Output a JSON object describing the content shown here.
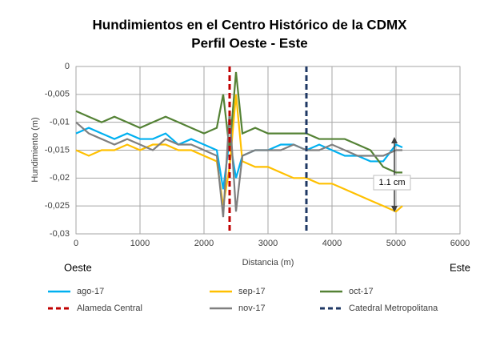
{
  "chart_data": {
    "type": "line",
    "title": "Hundimientos en el Centro Histórico de la CDMX",
    "subtitle": "Perfil Oeste - Este",
    "x_label": "Distancia (m)",
    "y_label": "Hundimiento (m)",
    "x": [
      0,
      200,
      400,
      600,
      800,
      1000,
      1200,
      1400,
      1600,
      1800,
      2000,
      2200,
      2300,
      2400,
      2500,
      2600,
      2800,
      3000,
      3200,
      3400,
      3600,
      3800,
      4000,
      4200,
      4400,
      4600,
      4800,
      5000,
      5100
    ],
    "series": [
      {
        "name": "ago-17",
        "color": "#00b0f0",
        "values": [
          -0.012,
          -0.011,
          -0.012,
          -0.013,
          -0.012,
          -0.013,
          -0.013,
          -0.012,
          -0.014,
          -0.013,
          -0.014,
          -0.015,
          -0.022,
          -0.013,
          -0.02,
          -0.016,
          -0.015,
          -0.015,
          -0.014,
          -0.014,
          -0.015,
          -0.014,
          -0.015,
          -0.016,
          -0.016,
          -0.017,
          -0.017,
          -0.014,
          -0.0145
        ]
      },
      {
        "name": "sep-17",
        "color": "#ffc000",
        "values": [
          -0.015,
          -0.016,
          -0.015,
          -0.015,
          -0.014,
          -0.015,
          -0.014,
          -0.014,
          -0.015,
          -0.015,
          -0.016,
          -0.017,
          -0.025,
          -0.018,
          -0.005,
          -0.017,
          -0.018,
          -0.018,
          -0.019,
          -0.02,
          -0.02,
          -0.021,
          -0.021,
          -0.022,
          -0.023,
          -0.024,
          -0.025,
          -0.026,
          -0.025
        ]
      },
      {
        "name": "oct-17",
        "color": "#548235",
        "values": [
          -0.008,
          -0.009,
          -0.01,
          -0.009,
          -0.01,
          -0.011,
          -0.01,
          -0.009,
          -0.01,
          -0.011,
          -0.012,
          -0.011,
          -0.005,
          -0.015,
          -0.001,
          -0.012,
          -0.011,
          -0.012,
          -0.012,
          -0.012,
          -0.012,
          -0.013,
          -0.013,
          -0.013,
          -0.014,
          -0.015,
          -0.018,
          -0.019,
          -0.019
        ]
      },
      {
        "name": "nov-17",
        "color": "#7f7f7f",
        "values": [
          -0.01,
          -0.012,
          -0.013,
          -0.014,
          -0.013,
          -0.014,
          -0.015,
          -0.013,
          -0.014,
          -0.014,
          -0.015,
          -0.016,
          -0.027,
          -0.008,
          -0.026,
          -0.016,
          -0.015,
          -0.015,
          -0.015,
          -0.014,
          -0.015,
          -0.015,
          -0.014,
          -0.015,
          -0.016,
          -0.016,
          -0.016,
          -0.015,
          -0.015
        ]
      }
    ],
    "reference_lines": [
      {
        "name": "Alameda Central",
        "x": 2400,
        "color": "#c00000"
      },
      {
        "name": "Catedral Metropolitana",
        "x": 3600,
        "color": "#1f3864"
      }
    ],
    "annotations": [
      {
        "text": "Oeste"
      },
      {
        "text": "Este"
      },
      {
        "text": "1.1 cm"
      }
    ],
    "xlim": [
      0,
      6000
    ],
    "xticks": [
      0,
      1000,
      2000,
      3000,
      4000,
      5000,
      6000
    ],
    "ylim": [
      -0.03,
      0
    ],
    "yticks": [
      0,
      {
        "value": -0.005,
        "label": "-0,005"
      },
      {
        "value": -0.01,
        "label": "-0,01"
      },
      {
        "value": -0.015,
        "label": "-0,015"
      },
      {
        "value": -0.02,
        "label": "-0,02"
      },
      {
        "value": -0.025,
        "label": "-0,025"
      },
      {
        "value": -0.03,
        "label": "-0,03"
      }
    ],
    "grid": true
  }
}
